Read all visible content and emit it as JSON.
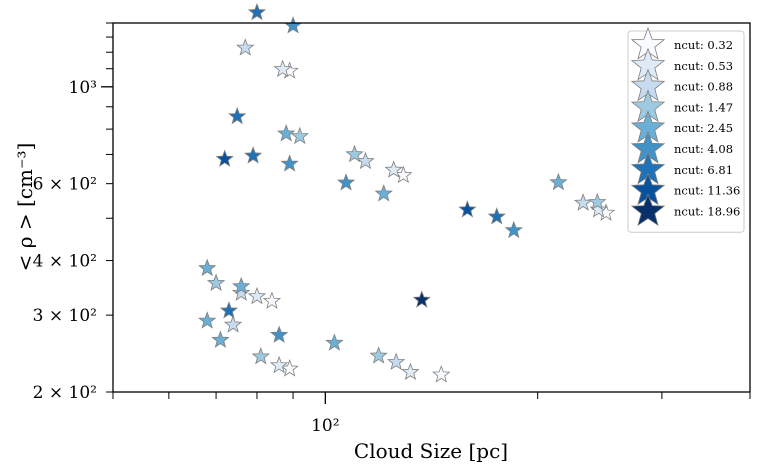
{
  "chart_data": {
    "type": "scatter",
    "xlabel": "Cloud Size [pc]",
    "ylabel": "< ρ > [cm⁻³]",
    "xscale": "log",
    "yscale": "log",
    "xlim": [
      50,
      400
    ],
    "ylim": [
      200,
      1400
    ],
    "x_tick_labels": [
      {
        "value": 100,
        "label": "10²"
      }
    ],
    "y_tick_labels": [
      {
        "value": 200,
        "label": "2 × 10²"
      },
      {
        "value": 300,
        "label": "3 × 10²"
      },
      {
        "value": 400,
        "label": "4 × 10²"
      },
      {
        "value": 600,
        "label": "6 × 10²"
      },
      {
        "value": 1000,
        "label": "10³"
      }
    ],
    "marker": "star",
    "legend_position": "upper right",
    "series": [
      {
        "name": "ncut: 0.32",
        "color": "#f7fbff",
        "points": [
          [
            146,
            219
          ],
          [
            89,
            226
          ],
          [
            250,
            514
          ],
          [
            129,
            627
          ],
          [
            89,
            1087
          ],
          [
            84,
            323
          ]
        ]
      },
      {
        "name": "ncut: 0.53",
        "color": "#deebf7",
        "points": [
          [
            132,
            222
          ],
          [
            86,
            230
          ],
          [
            244,
            523
          ],
          [
            125,
            645
          ],
          [
            87,
            1097
          ],
          [
            80,
            331
          ]
        ]
      },
      {
        "name": "ncut: 0.88",
        "color": "#c6dbef",
        "points": [
          [
            126,
            234
          ],
          [
            74,
            285
          ],
          [
            232,
            542
          ],
          [
            114,
            675
          ],
          [
            77,
            1228
          ],
          [
            76,
            337
          ]
        ]
      },
      {
        "name": "ncut: 1.47",
        "color": "#9ecae1",
        "points": [
          [
            119,
            242
          ],
          [
            81,
            241
          ],
          [
            243,
            544
          ],
          [
            110,
            700
          ],
          [
            92,
            770
          ],
          [
            70,
            355
          ]
        ]
      },
      {
        "name": "ncut: 2.45",
        "color": "#6baed6",
        "points": [
          [
            103,
            259
          ],
          [
            71,
            263
          ],
          [
            214,
            604
          ],
          [
            121,
            569
          ],
          [
            88,
            781
          ],
          [
            68,
            384
          ],
          [
            68,
            291
          ],
          [
            76,
            349
          ]
        ]
      },
      {
        "name": "ncut: 4.08",
        "color": "#4292c6",
        "points": [
          [
            185,
            469
          ],
          [
            86,
            270
          ],
          [
            107,
            603
          ],
          [
            90,
            1380
          ],
          [
            89,
            666
          ]
        ]
      },
      {
        "name": "ncut: 6.81",
        "color": "#2171b5",
        "points": [
          [
            175,
            504
          ],
          [
            80,
            1480
          ],
          [
            75,
            855
          ],
          [
            79,
            695
          ],
          [
            73,
            307
          ]
        ]
      },
      {
        "name": "ncut: 11.36",
        "color": "#08519c",
        "points": [
          [
            159,
            523
          ],
          [
            72,
            683
          ]
        ]
      },
      {
        "name": "ncut: 18.96",
        "color": "#08306b",
        "points": [
          [
            137,
            325
          ]
        ]
      }
    ]
  }
}
